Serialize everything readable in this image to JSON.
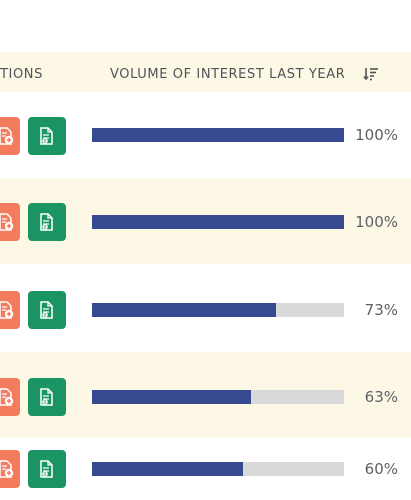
{
  "header": {
    "actions_label": "TIONS",
    "volume_label": "VOLUME OF INTEREST LAST YEAR",
    "sort_icon": "sort-descending-icon"
  },
  "icons": {
    "add": "file-add-icon",
    "doc": "document-icon"
  },
  "colors": {
    "bar": "#374a91",
    "track": "#d9d9d9",
    "add_button": "#f37b5e",
    "doc_button": "#1b9463",
    "row_alt": "#fdf8e6"
  },
  "rows": [
    {
      "interest_pct": 100,
      "label": "100%"
    },
    {
      "interest_pct": 100,
      "label": "100%"
    },
    {
      "interest_pct": 73,
      "label": "73%"
    },
    {
      "interest_pct": 63,
      "label": "63%"
    },
    {
      "interest_pct": 60,
      "label": "60%"
    }
  ]
}
